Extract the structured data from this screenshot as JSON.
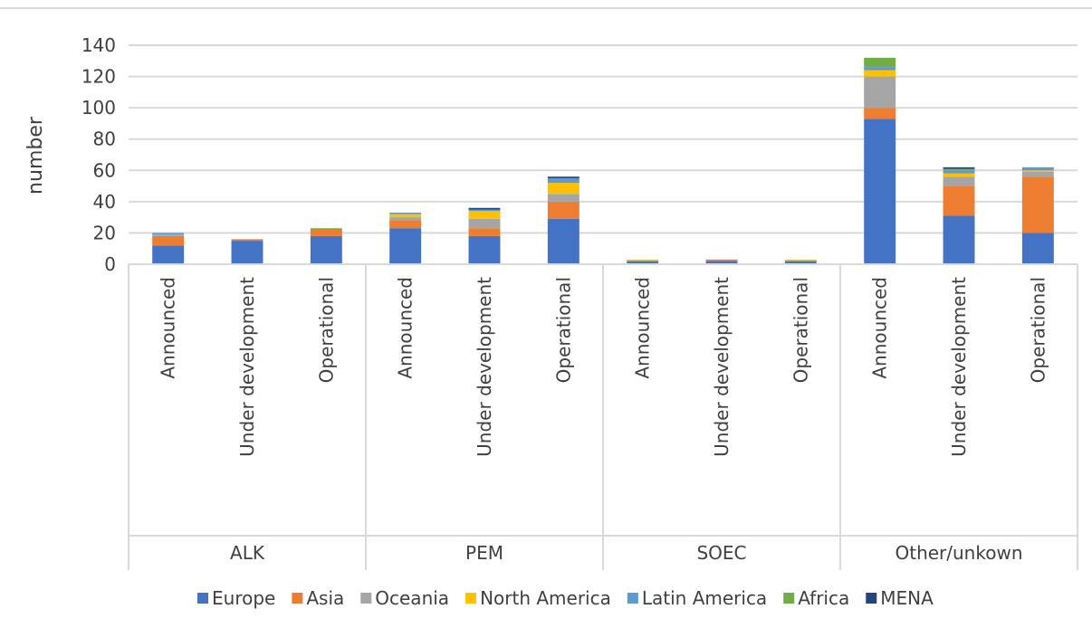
{
  "chart_data": {
    "type": "bar",
    "stacked": true,
    "title": "",
    "xlabel": "",
    "ylabel": "number",
    "ylim": [
      0,
      140
    ],
    "yticks": [
      0,
      20,
      40,
      60,
      80,
      100,
      120,
      140
    ],
    "grid": true,
    "legend_position": "bottom",
    "groups": [
      {
        "name": "ALK",
        "categories": [
          "Announced",
          "Under development",
          "Operational"
        ]
      },
      {
        "name": "PEM",
        "categories": [
          "Announced",
          "Under development",
          "Operational"
        ]
      },
      {
        "name": "SOEC",
        "categories": [
          "Announced",
          "Under development",
          "Operational"
        ]
      },
      {
        "name": "Other/unkown",
        "categories": [
          "Announced",
          "Under development",
          "Operational"
        ]
      }
    ],
    "series": [
      {
        "name": "Europe",
        "color": "#4472C4",
        "values": [
          12,
          15,
          18,
          23,
          18,
          29,
          2,
          2,
          2,
          93,
          31,
          20
        ]
      },
      {
        "name": "Asia",
        "color": "#ED7D31",
        "values": [
          6,
          1,
          4,
          5,
          5,
          11,
          0,
          1,
          0,
          7,
          19,
          36
        ]
      },
      {
        "name": "Oceania",
        "color": "#A5A5A5",
        "values": [
          1,
          0,
          0,
          2,
          6,
          5,
          0,
          0,
          0,
          20,
          6,
          3
        ]
      },
      {
        "name": "North America",
        "color": "#FFC000",
        "values": [
          0,
          0,
          0,
          2,
          5,
          7,
          1,
          0,
          1,
          4,
          2,
          1
        ]
      },
      {
        "name": "Latin America",
        "color": "#5B9BD5",
        "values": [
          1,
          0,
          0,
          1,
          1,
          3,
          0,
          0,
          0,
          2,
          2,
          2
        ]
      },
      {
        "name": "Africa",
        "color": "#70AD47",
        "values": [
          0,
          0,
          1,
          0,
          0,
          0,
          0,
          0,
          0,
          6,
          1,
          0
        ]
      },
      {
        "name": "MENA",
        "color": "#264478",
        "values": [
          0,
          0,
          0,
          0,
          1,
          1,
          0,
          0,
          0,
          0,
          1,
          0
        ]
      }
    ]
  }
}
